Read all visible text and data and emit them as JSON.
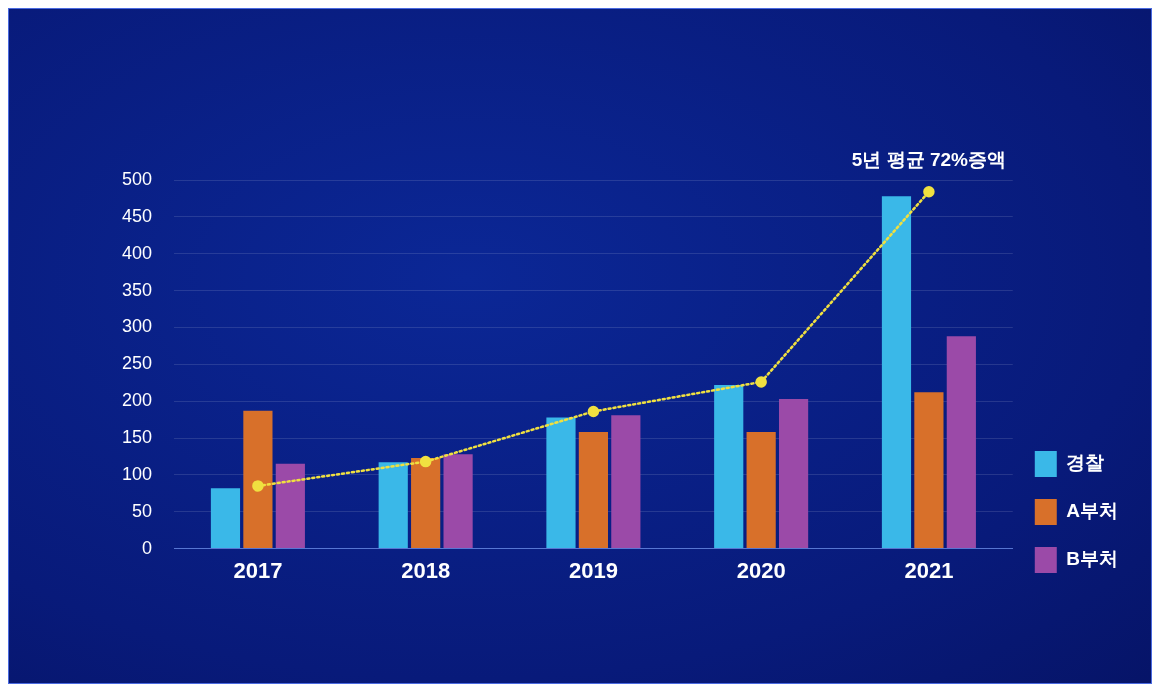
{
  "chart_data": {
    "type": "bar",
    "categories": [
      "2017",
      "2018",
      "2019",
      "2020",
      "2021"
    ],
    "series": [
      {
        "name": "경찰",
        "color": "#3ab8e8",
        "values": [
          82,
          117,
          178,
          222,
          478
        ]
      },
      {
        "name": "A부처",
        "color": "#d8702a",
        "values": [
          187,
          123,
          158,
          158,
          212
        ]
      },
      {
        "name": "B부처",
        "color": "#9b4aa8",
        "values": [
          115,
          128,
          181,
          203,
          288
        ]
      },
      {
        "type": "line",
        "color": "#f0e040",
        "values": [
          85,
          118,
          186,
          226,
          484
        ],
        "marker": "circle",
        "line_style": "dotted"
      }
    ],
    "ylim": [
      0,
      500
    ],
    "yticks": [
      0,
      50,
      100,
      150,
      200,
      250,
      300,
      350,
      400,
      450,
      500
    ],
    "grid": "y",
    "legend": "right",
    "annotations": [
      {
        "text": "5년 평균 72%증액",
        "x": "2021",
        "y": 484
      }
    ]
  }
}
